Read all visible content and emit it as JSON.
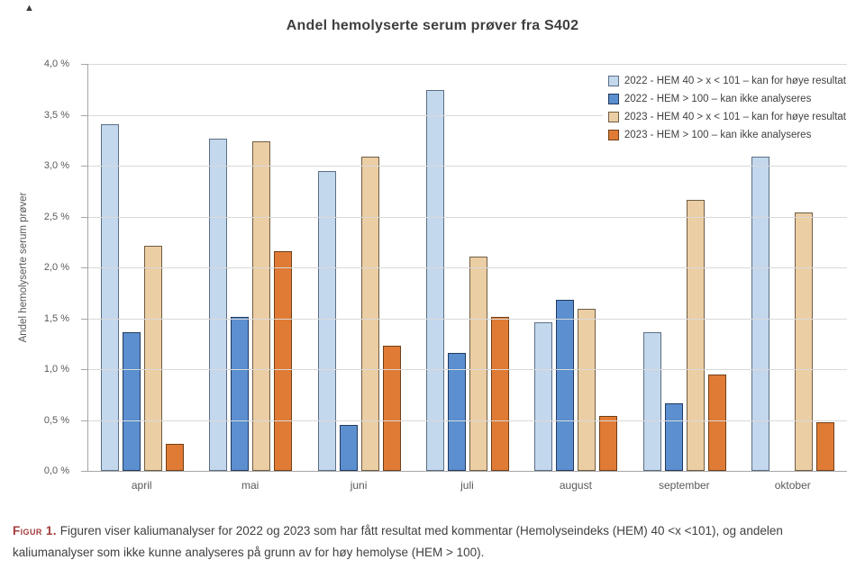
{
  "title": "Andel hemolyserte serum prøver fra S402",
  "artifact_glyph": "▲",
  "chart_data": {
    "type": "bar",
    "title": "Andel hemolyserte serum prøver fra S402",
    "categories": [
      "april",
      "mai",
      "juni",
      "juli",
      "august",
      "september",
      "oktober"
    ],
    "series": [
      {
        "name": "2022 - HEM 40 > x < 101 – kan for høye resultat",
        "color": "#c4d8ed",
        "border": "#5a6e84",
        "values": [
          3.41,
          3.27,
          2.95,
          3.74,
          1.46,
          1.36,
          3.09
        ]
      },
      {
        "name": "2022 - HEM > 100 – kan ikke analyseres",
        "color": "#5b8fd0",
        "border": "#223a5e",
        "values": [
          1.36,
          1.51,
          0.45,
          1.16,
          1.68,
          0.66,
          0
        ]
      },
      {
        "name": "2023 - HEM 40 > x < 101 – kan for høye resultat",
        "color": "#eccea4",
        "border": "#6e5d44",
        "values": [
          2.21,
          3.24,
          3.09,
          2.11,
          1.59,
          2.66,
          2.54
        ]
      },
      {
        "name": "2023 - HEM > 100 – kan ikke analyseres",
        "color": "#e07b35",
        "border": "#713f17",
        "values": [
          0.27,
          2.16,
          1.23,
          1.51,
          0.54,
          0.95,
          0.48
        ]
      }
    ],
    "xlabel": "",
    "ylabel": "Andel hemolyserte serum prøver",
    "ylim": [
      0,
      4
    ],
    "ytick_step": 0.5,
    "ytick_labels": [
      "0,0 %",
      "0,5 %",
      "1,0 %",
      "1,5 %",
      "2,0 %",
      "2,5 %",
      "3,0 %",
      "3,5 %",
      "4,0 %"
    ],
    "grid": true,
    "legend_position": "top-right"
  },
  "caption": {
    "label": "Figur 1.",
    "text": " Figuren viser kaliumanalyser for 2022 og 2023 som har fått resultat med kommentar (Hemolyseindeks (HEM) 40 <x <101), og andelen kaliumanalyser som ikke kunne analyseres på grunn av for høy hemolyse (HEM > 100)."
  }
}
